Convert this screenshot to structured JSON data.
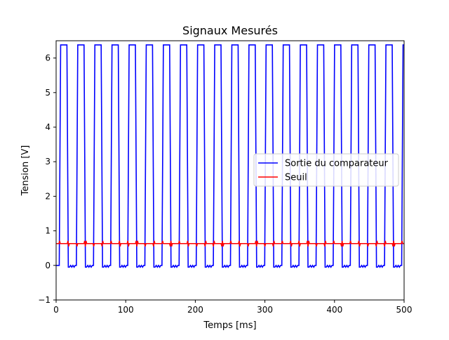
{
  "chart_data": {
    "type": "line",
    "title": "Signaux Mesurés",
    "xlabel": "Temps [ms]",
    "ylabel": "Tension [V]",
    "xlim": [
      0,
      500
    ],
    "ylim": [
      -1,
      6.5
    ],
    "xticks": [
      0,
      100,
      200,
      300,
      400,
      500
    ],
    "yticks": [
      -1,
      0,
      1,
      2,
      3,
      4,
      5,
      6
    ],
    "grid": false,
    "legend_position": "center-right",
    "series": [
      {
        "name": "Sortie du comparateur",
        "color": "#0000ff",
        "pulse": {
          "period_ms": 24.6,
          "first_rise_ms": 4.5,
          "rise_ms": 2.0,
          "high_ms": 9.0,
          "fall_ms": 2.0,
          "low_ms": 11.6,
          "high_level_v": 6.38,
          "low_level_v": 0.0,
          "low_ripple_v": -0.05
        }
      },
      {
        "name": "Seuil",
        "color": "#ff0000",
        "level_v": 0.63,
        "noise_v": 0.08
      }
    ]
  }
}
